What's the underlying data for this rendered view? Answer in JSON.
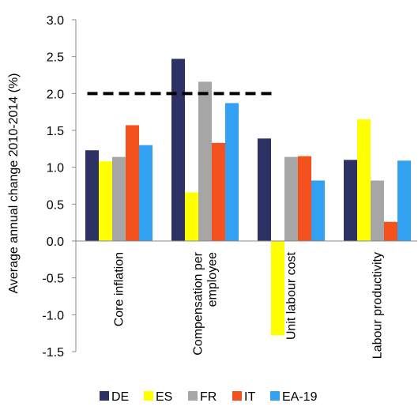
{
  "chart_data": {
    "type": "bar",
    "title": "",
    "xlabel": "",
    "ylabel": "Average annual change 2010-2014 (%)",
    "ylim": [
      -1.5,
      3.0
    ],
    "yticks": [
      -1.5,
      -1.0,
      -0.5,
      0.0,
      0.5,
      1.0,
      1.5,
      2.0,
      2.5,
      3.0
    ],
    "ytick_labels": [
      "-1.5",
      "-1.0",
      "-0.5",
      "0.0",
      "0.5",
      "1.0",
      "1.5",
      "2.0",
      "2.5",
      "3.0"
    ],
    "grid": false,
    "legend_placement": "bottom",
    "categories": [
      "Core inflation",
      "Compensation per employee",
      "Unit labour cost",
      "Labour productivity"
    ],
    "category_label_lines": [
      [
        "Core inflation"
      ],
      [
        "Compensation per",
        "employee"
      ],
      [
        "Unit labour cost"
      ],
      [
        "Labour productivity"
      ]
    ],
    "series": [
      {
        "name": "DE",
        "color": "#2e3163",
        "values": [
          1.23,
          2.47,
          1.39,
          1.1
        ]
      },
      {
        "name": "ES",
        "color": "#ffff00",
        "values": [
          1.08,
          0.66,
          -1.28,
          1.65
        ]
      },
      {
        "name": "FR",
        "color": "#a6a6a6",
        "values": [
          1.14,
          2.16,
          1.14,
          0.82
        ]
      },
      {
        "name": "IT",
        "color": "#f4511e",
        "values": [
          1.57,
          1.33,
          1.15,
          0.26
        ]
      },
      {
        "name": "EA-19",
        "color": "#33a1f2",
        "values": [
          1.3,
          1.87,
          0.82,
          1.09
        ]
      }
    ],
    "reference_line": {
      "value": 2.0,
      "style": "dashed",
      "color": "#000000",
      "from_category": 0,
      "to_category": 2
    }
  }
}
